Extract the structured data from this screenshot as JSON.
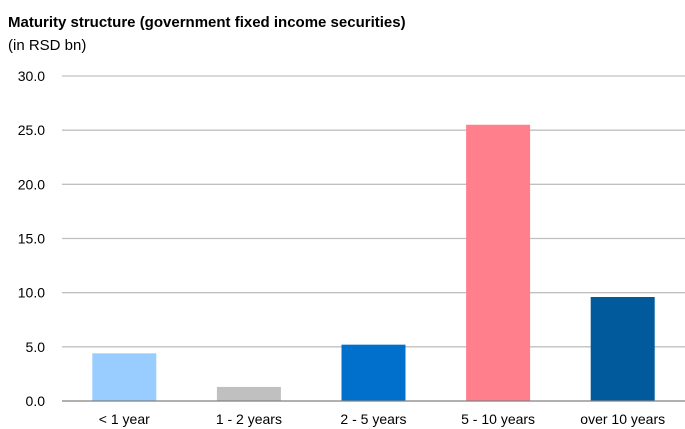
{
  "chart_data": {
    "type": "bar",
    "title": "Maturity structure (government fixed income securities)",
    "subtitle": "(in RSD bn)",
    "categories": [
      "< 1 year",
      "1 - 2 years",
      "2 - 5 years",
      "5 - 10 years",
      "over 10 years"
    ],
    "values": [
      4.4,
      1.3,
      5.2,
      25.5,
      9.6
    ],
    "colors": [
      "#99CCFF",
      "#C0C0C0",
      "#0070CC",
      "#FF7F8C",
      "#005A9C"
    ],
    "ylim": [
      0,
      30
    ],
    "yticks": [
      "0.0",
      "5.0",
      "10.0",
      "15.0",
      "20.0",
      "25.0",
      "30.0"
    ],
    "grid": true,
    "legend": "none"
  }
}
